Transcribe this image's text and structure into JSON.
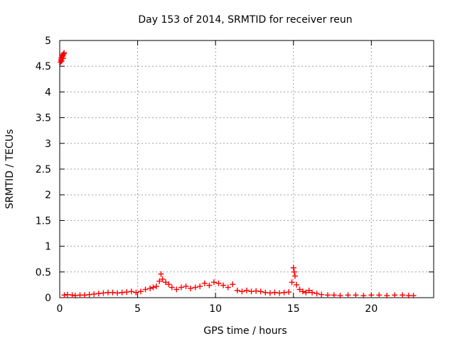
{
  "chart_data": {
    "type": "scatter",
    "title": "Day 153 of 2014, SRMTID for receiver reun",
    "xlabel": "GPS time / hours",
    "ylabel": "SRMTID / TECUs",
    "xlim": [
      0,
      24
    ],
    "ylim": [
      0,
      5
    ],
    "x_ticks": [
      0,
      5,
      10,
      15,
      20
    ],
    "y_ticks": [
      0,
      0.5,
      1,
      1.5,
      2,
      2.5,
      3,
      3.5,
      4,
      4.5,
      5
    ],
    "x_tick_labels": [
      "0",
      "5",
      "10",
      "15",
      "20"
    ],
    "y_tick_labels": [
      "0",
      "0.5",
      "1",
      "1.5",
      "2",
      "2.5",
      "3",
      "3.5",
      "4",
      "4.5",
      "5"
    ],
    "grid": true,
    "marker": "+",
    "color": "#ff0000",
    "series": [
      {
        "points": [
          [
            0.05,
            4.58
          ],
          [
            0.08,
            4.62
          ],
          [
            0.1,
            4.66
          ],
          [
            0.12,
            4.6
          ],
          [
            0.15,
            4.68
          ],
          [
            0.18,
            4.7
          ],
          [
            0.2,
            4.72
          ],
          [
            0.22,
            4.65
          ],
          [
            0.25,
            4.74
          ],
          [
            0.28,
            4.76
          ],
          [
            0.3,
            0.05
          ],
          [
            0.5,
            0.06
          ],
          [
            0.8,
            0.05
          ],
          [
            1.0,
            0.04
          ],
          [
            1.3,
            0.05
          ],
          [
            1.6,
            0.05
          ],
          [
            1.9,
            0.06
          ],
          [
            2.2,
            0.07
          ],
          [
            2.5,
            0.08
          ],
          [
            2.8,
            0.09
          ],
          [
            3.1,
            0.1
          ],
          [
            3.4,
            0.1
          ],
          [
            3.7,
            0.09
          ],
          [
            4.0,
            0.1
          ],
          [
            4.3,
            0.11
          ],
          [
            4.6,
            0.12
          ],
          [
            4.9,
            0.1
          ],
          [
            5.2,
            0.12
          ],
          [
            5.5,
            0.16
          ],
          [
            5.8,
            0.18
          ],
          [
            6.0,
            0.2
          ],
          [
            6.2,
            0.22
          ],
          [
            6.4,
            0.32
          ],
          [
            6.5,
            0.46
          ],
          [
            6.6,
            0.36
          ],
          [
            6.8,
            0.3
          ],
          [
            7.0,
            0.26
          ],
          [
            7.2,
            0.2
          ],
          [
            7.5,
            0.16
          ],
          [
            7.8,
            0.2
          ],
          [
            8.1,
            0.22
          ],
          [
            8.4,
            0.18
          ],
          [
            8.7,
            0.2
          ],
          [
            9.0,
            0.22
          ],
          [
            9.3,
            0.28
          ],
          [
            9.6,
            0.24
          ],
          [
            9.9,
            0.3
          ],
          [
            10.2,
            0.28
          ],
          [
            10.5,
            0.24
          ],
          [
            10.8,
            0.2
          ],
          [
            11.1,
            0.26
          ],
          [
            11.4,
            0.14
          ],
          [
            11.7,
            0.12
          ],
          [
            12.0,
            0.14
          ],
          [
            12.3,
            0.12
          ],
          [
            12.6,
            0.13
          ],
          [
            12.9,
            0.12
          ],
          [
            13.2,
            0.1
          ],
          [
            13.5,
            0.09
          ],
          [
            13.8,
            0.1
          ],
          [
            14.1,
            0.09
          ],
          [
            14.4,
            0.1
          ],
          [
            14.7,
            0.11
          ],
          [
            14.9,
            0.3
          ],
          [
            15.0,
            0.58
          ],
          [
            15.05,
            0.5
          ],
          [
            15.1,
            0.42
          ],
          [
            15.2,
            0.25
          ],
          [
            15.4,
            0.16
          ],
          [
            15.6,
            0.12
          ],
          [
            15.8,
            0.1
          ],
          [
            16.0,
            0.14
          ],
          [
            16.2,
            0.1
          ],
          [
            16.5,
            0.08
          ],
          [
            16.8,
            0.06
          ],
          [
            17.2,
            0.05
          ],
          [
            17.6,
            0.05
          ],
          [
            18.0,
            0.04
          ],
          [
            18.5,
            0.05
          ],
          [
            19.0,
            0.05
          ],
          [
            19.5,
            0.04
          ],
          [
            20.0,
            0.05
          ],
          [
            20.5,
            0.05
          ],
          [
            21.0,
            0.04
          ],
          [
            21.5,
            0.05
          ],
          [
            22.0,
            0.05
          ],
          [
            22.4,
            0.04
          ],
          [
            22.7,
            0.04
          ]
        ]
      }
    ]
  }
}
